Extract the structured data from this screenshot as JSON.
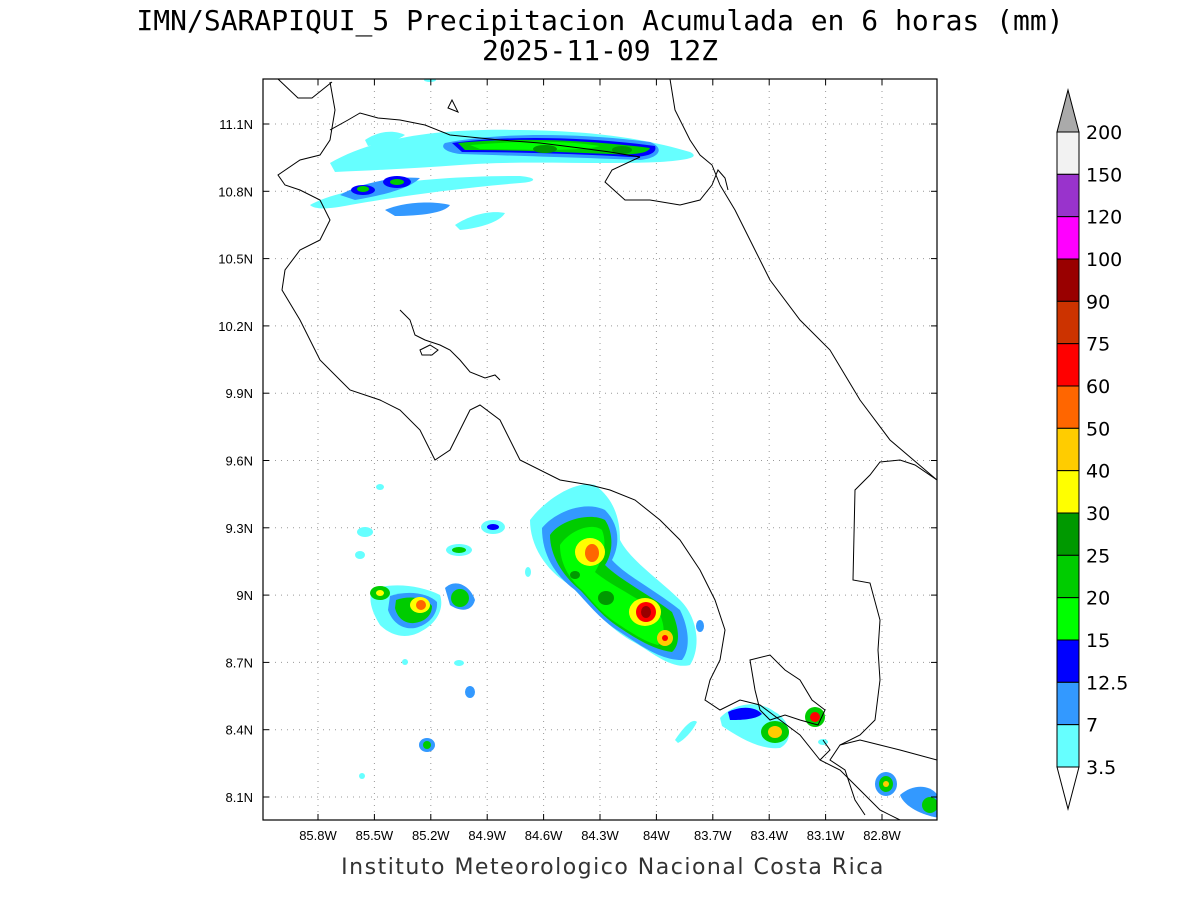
{
  "title": {
    "line1": "IMN/SARAPIQUI_5 Precipitacion Acumulada en 6 horas (mm)",
    "line2": "2025-11-09 12Z"
  },
  "credit": "Instituto Meteorologico Nacional Costa Rica",
  "map": {
    "lon_range": [
      -86.0,
      -83.0
    ],
    "lat_range": [
      8.0,
      11.3
    ],
    "lon_ticks": [
      "85.8W",
      "85.5W",
      "85.2W",
      "84.9W",
      "84.6W",
      "84.3W",
      "84W",
      "83.7W",
      "83.4W",
      "83.1W",
      "82.8W"
    ],
    "lat_ticks": [
      "11.1N",
      "10.8N",
      "10.5N",
      "10.2N",
      "9.9N",
      "9.6N",
      "9.3N",
      "9N",
      "8.7N",
      "8.4N",
      "8.1N"
    ],
    "grid": "dotted"
  },
  "colorbar": {
    "labels": [
      "200",
      "150",
      "120",
      "100",
      "90",
      "75",
      "60",
      "50",
      "40",
      "30",
      "25",
      "20",
      "15",
      "12.5",
      "7",
      "3.5"
    ],
    "colors": [
      "#f2f2f2",
      "#9933cc",
      "#ff00ff",
      "#990000",
      "#cc3300",
      "#ff0000",
      "#ff6600",
      "#ffcc00",
      "#ffff00",
      "#009900",
      "#00cc00",
      "#00ff00",
      "#0000ff",
      "#3399ff",
      "#66ffff"
    ],
    "over_color": "#aaaaaa",
    "under_color": "#ffffff"
  }
}
